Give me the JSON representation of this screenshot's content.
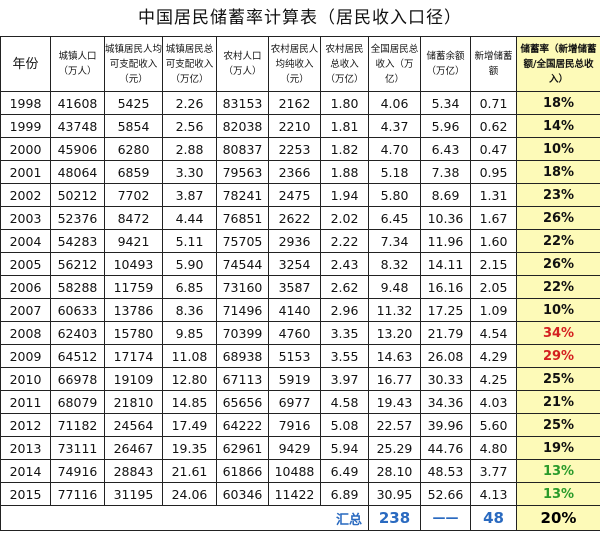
{
  "title": "中国居民储蓄率计算表（居民收入口径）",
  "headers": [
    "年份",
    "城镇人口（万人）",
    "城镇居民人均可支配收入（元）",
    "城镇居民总可支配收入（万亿）",
    "农村人口（万人）",
    "农村居民人均纯收入（元）",
    "农村居民总收入（万亿）",
    "全国居民总收入（万亿）",
    "储蓄余额（万亿）",
    "新增储蓄额",
    "储蓄率（新增储蓄额/全国居民总收入）"
  ],
  "rows": [
    {
      "year": "1998",
      "urban_pop": "41608",
      "urban_income_pc": "5425",
      "urban_income_total": "2.26",
      "rural_pop": "83153",
      "rural_income_pc": "2162",
      "rural_income_total": "1.80",
      "national_income": "4.06",
      "savings_balance": "5.34",
      "new_savings": "0.71",
      "rate": "18%",
      "rate_color": "#111111"
    },
    {
      "year": "1999",
      "urban_pop": "43748",
      "urban_income_pc": "5854",
      "urban_income_total": "2.56",
      "rural_pop": "82038",
      "rural_income_pc": "2210",
      "rural_income_total": "1.81",
      "national_income": "4.37",
      "savings_balance": "5.96",
      "new_savings": "0.62",
      "rate": "14%",
      "rate_color": "#111111"
    },
    {
      "year": "2000",
      "urban_pop": "45906",
      "urban_income_pc": "6280",
      "urban_income_total": "2.88",
      "rural_pop": "80837",
      "rural_income_pc": "2253",
      "rural_income_total": "1.82",
      "national_income": "4.70",
      "savings_balance": "6.43",
      "new_savings": "0.47",
      "rate": "10%",
      "rate_color": "#111111"
    },
    {
      "year": "2001",
      "urban_pop": "48064",
      "urban_income_pc": "6859",
      "urban_income_total": "3.30",
      "rural_pop": "79563",
      "rural_income_pc": "2366",
      "rural_income_total": "1.88",
      "national_income": "5.18",
      "savings_balance": "7.38",
      "new_savings": "0.95",
      "rate": "18%",
      "rate_color": "#111111"
    },
    {
      "year": "2002",
      "urban_pop": "50212",
      "urban_income_pc": "7702",
      "urban_income_total": "3.87",
      "rural_pop": "78241",
      "rural_income_pc": "2475",
      "rural_income_total": "1.94",
      "national_income": "5.80",
      "savings_balance": "8.69",
      "new_savings": "1.31",
      "rate": "23%",
      "rate_color": "#111111"
    },
    {
      "year": "2003",
      "urban_pop": "52376",
      "urban_income_pc": "8472",
      "urban_income_total": "4.44",
      "rural_pop": "76851",
      "rural_income_pc": "2622",
      "rural_income_total": "2.02",
      "national_income": "6.45",
      "savings_balance": "10.36",
      "new_savings": "1.67",
      "rate": "26%",
      "rate_color": "#111111"
    },
    {
      "year": "2004",
      "urban_pop": "54283",
      "urban_income_pc": "9421",
      "urban_income_total": "5.11",
      "rural_pop": "75705",
      "rural_income_pc": "2936",
      "rural_income_total": "2.22",
      "national_income": "7.34",
      "savings_balance": "11.96",
      "new_savings": "1.60",
      "rate": "22%",
      "rate_color": "#111111"
    },
    {
      "year": "2005",
      "urban_pop": "56212",
      "urban_income_pc": "10493",
      "urban_income_total": "5.90",
      "rural_pop": "74544",
      "rural_income_pc": "3254",
      "rural_income_total": "2.43",
      "national_income": "8.32",
      "savings_balance": "14.11",
      "new_savings": "2.15",
      "rate": "26%",
      "rate_color": "#111111"
    },
    {
      "year": "2006",
      "urban_pop": "58288",
      "urban_income_pc": "11759",
      "urban_income_total": "6.85",
      "rural_pop": "73160",
      "rural_income_pc": "3587",
      "rural_income_total": "2.62",
      "national_income": "9.48",
      "savings_balance": "16.16",
      "new_savings": "2.05",
      "rate": "22%",
      "rate_color": "#111111"
    },
    {
      "year": "2007",
      "urban_pop": "60633",
      "urban_income_pc": "13786",
      "urban_income_total": "8.36",
      "rural_pop": "71496",
      "rural_income_pc": "4140",
      "rural_income_total": "2.96",
      "national_income": "11.32",
      "savings_balance": "17.25",
      "new_savings": "1.09",
      "rate": "10%",
      "rate_color": "#111111"
    },
    {
      "year": "2008",
      "urban_pop": "62403",
      "urban_income_pc": "15780",
      "urban_income_total": "9.85",
      "rural_pop": "70399",
      "rural_income_pc": "4760",
      "rural_income_total": "3.35",
      "national_income": "13.20",
      "savings_balance": "21.79",
      "new_savings": "4.54",
      "rate": "34%",
      "rate_color": "#d42020"
    },
    {
      "year": "2009",
      "urban_pop": "64512",
      "urban_income_pc": "17174",
      "urban_income_total": "11.08",
      "rural_pop": "68938",
      "rural_income_pc": "5153",
      "rural_income_total": "3.55",
      "national_income": "14.63",
      "savings_balance": "26.08",
      "new_savings": "4.29",
      "rate": "29%",
      "rate_color": "#d42020"
    },
    {
      "year": "2010",
      "urban_pop": "66978",
      "urban_income_pc": "19109",
      "urban_income_total": "12.80",
      "rural_pop": "67113",
      "rural_income_pc": "5919",
      "rural_income_total": "3.97",
      "national_income": "16.77",
      "savings_balance": "30.33",
      "new_savings": "4.25",
      "rate": "25%",
      "rate_color": "#111111"
    },
    {
      "year": "2011",
      "urban_pop": "68079",
      "urban_income_pc": "21810",
      "urban_income_total": "14.85",
      "rural_pop": "65656",
      "rural_income_pc": "6977",
      "rural_income_total": "4.58",
      "national_income": "19.43",
      "savings_balance": "34.36",
      "new_savings": "4.03",
      "rate": "21%",
      "rate_color": "#111111"
    },
    {
      "year": "2012",
      "urban_pop": "71182",
      "urban_income_pc": "24564",
      "urban_income_total": "17.49",
      "rural_pop": "64222",
      "rural_income_pc": "7916",
      "rural_income_total": "5.08",
      "national_income": "22.57",
      "savings_balance": "39.96",
      "new_savings": "5.60",
      "rate": "25%",
      "rate_color": "#111111"
    },
    {
      "year": "2013",
      "urban_pop": "73111",
      "urban_income_pc": "26467",
      "urban_income_total": "19.35",
      "rural_pop": "62961",
      "rural_income_pc": "9429",
      "rural_income_total": "5.94",
      "national_income": "25.29",
      "savings_balance": "44.76",
      "new_savings": "4.80",
      "rate": "19%",
      "rate_color": "#111111"
    },
    {
      "year": "2014",
      "urban_pop": "74916",
      "urban_income_pc": "28843",
      "urban_income_total": "21.61",
      "rural_pop": "61866",
      "rural_income_pc": "10488",
      "rural_income_total": "6.49",
      "national_income": "28.10",
      "savings_balance": "48.53",
      "new_savings": "3.77",
      "rate": "13%",
      "rate_color": "#2a9a2a"
    },
    {
      "year": "2015",
      "urban_pop": "77116",
      "urban_income_pc": "31195",
      "urban_income_total": "24.06",
      "rural_pop": "60346",
      "rural_income_pc": "11422",
      "rural_income_total": "6.89",
      "national_income": "30.95",
      "savings_balance": "52.66",
      "new_savings": "4.13",
      "rate": "13%",
      "rate_color": "#2a9a2a"
    }
  ],
  "summary": {
    "label": "汇总",
    "national_income": "238",
    "savings_balance": "——",
    "new_savings": "48",
    "rate": "20%",
    "accent_color": "#2a6ac0"
  },
  "colors": {
    "rate_column_bg": "#fdfab8",
    "border": "#222222"
  }
}
